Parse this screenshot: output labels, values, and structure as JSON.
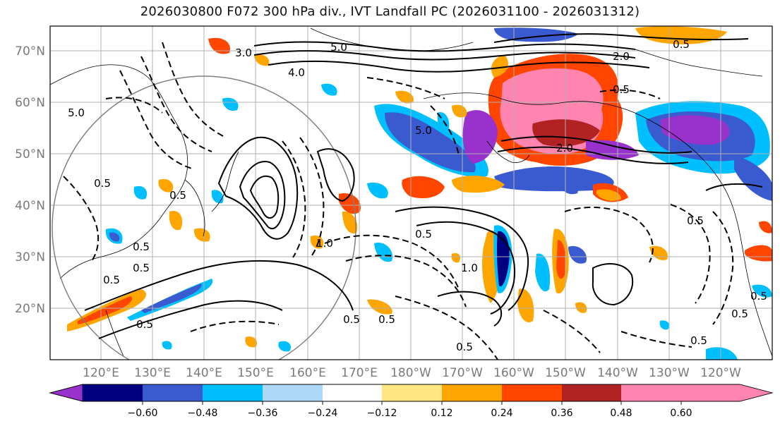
{
  "title": "2026030800 F072 300 hPa div., IVT Landfall PC (2026031100 - 2026031312)",
  "lat_labels": [
    "70°N",
    "60°N",
    "50°N",
    "40°N",
    "30°N",
    "20°N"
  ],
  "lon_labels": [
    "120°E",
    "130°E",
    "140°E",
    "150°E",
    "160°E",
    "170°E",
    "180°W",
    "170°W",
    "160°W",
    "150°W",
    "140°W",
    "130°W",
    "120°W"
  ],
  "colorbar": {
    "colors": [
      "#9932cc",
      "#000080",
      "#3a5bd0",
      "#00bfff",
      "#add8f7",
      "#ffffff",
      "#ffe680",
      "#ffa500",
      "#ff4500",
      "#b22222",
      "#ff85b0"
    ],
    "ticks": [
      "−0.60",
      "−0.48",
      "−0.36",
      "−0.24",
      "−0.12",
      "0.12",
      "0.24",
      "0.36",
      "0.48",
      "0.60"
    ]
  },
  "contour_labels": [
    "5.0",
    "5.0",
    "5.0",
    "4.0",
    "3.0",
    "2.0",
    "2.0",
    "1.0",
    "1.0",
    "0.5",
    "0.5",
    "0.5",
    "0.5",
    "0.5",
    "0.5",
    "0.5",
    "0.5",
    "0.5",
    "0.5",
    "0.5",
    "0.5",
    "0.5",
    "0.5",
    "0.5",
    "0.5"
  ],
  "colors": {
    "grid": "#b0b0b0",
    "contour": "#000000",
    "circle": "#808080"
  }
}
